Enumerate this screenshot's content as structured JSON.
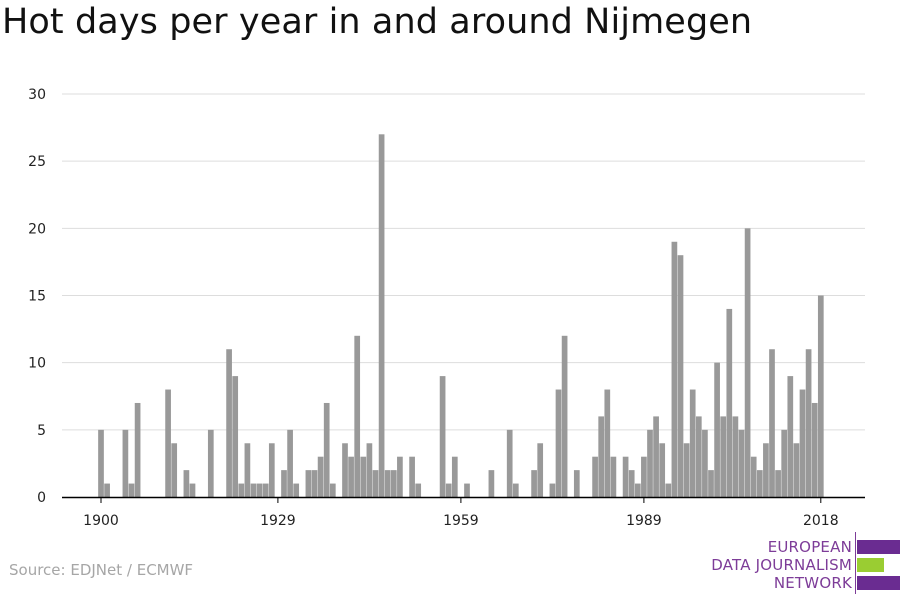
{
  "title": "Hot days per year in and around Nijmegen",
  "source": "Source: EDJNet / ECMWF",
  "logo": {
    "lines": [
      "EUROPEAN",
      "DATA JOURNALISM",
      "NETWORK"
    ],
    "colors": {
      "text": "#7d3c98",
      "bar_purple": "#6a2c91",
      "bar_green": "#9acd32"
    }
  },
  "colors": {
    "bar": "#999999",
    "grid": "#dddddd",
    "axis": "#000000"
  },
  "chart_data": {
    "type": "bar",
    "title": "Hot days per year in and around Nijmegen",
    "xlabel": "",
    "ylabel": "",
    "ylim": [
      0,
      30
    ],
    "y_ticks": [
      0,
      5,
      10,
      15,
      20,
      25,
      30
    ],
    "x_ticks": [
      1900,
      1929,
      1959,
      1989,
      2018
    ],
    "grid": true,
    "x": [
      1900,
      1901,
      1902,
      1903,
      1904,
      1905,
      1906,
      1907,
      1908,
      1909,
      1910,
      1911,
      1912,
      1913,
      1914,
      1915,
      1916,
      1917,
      1918,
      1919,
      1920,
      1921,
      1922,
      1923,
      1924,
      1925,
      1926,
      1927,
      1928,
      1929,
      1930,
      1931,
      1932,
      1933,
      1934,
      1935,
      1936,
      1937,
      1938,
      1939,
      1940,
      1941,
      1942,
      1943,
      1944,
      1945,
      1946,
      1947,
      1948,
      1949,
      1950,
      1951,
      1952,
      1953,
      1954,
      1955,
      1956,
      1957,
      1958,
      1959,
      1960,
      1961,
      1962,
      1963,
      1964,
      1965,
      1966,
      1967,
      1968,
      1969,
      1970,
      1971,
      1972,
      1973,
      1974,
      1975,
      1976,
      1977,
      1978,
      1979,
      1980,
      1981,
      1982,
      1983,
      1984,
      1985,
      1986,
      1987,
      1988,
      1989,
      1990,
      1991,
      1992,
      1993,
      1994,
      1995,
      1996,
      1997,
      1998,
      1999,
      2000,
      2001,
      2002,
      2003,
      2004,
      2005,
      2006,
      2007,
      2008,
      2009,
      2010,
      2011,
      2012,
      2013,
      2014,
      2015,
      2016,
      2017,
      2018
    ],
    "values": [
      5,
      1,
      0,
      0,
      5,
      1,
      7,
      0,
      0,
      0,
      0,
      8,
      4,
      0,
      2,
      1,
      0,
      0,
      5,
      0,
      0,
      11,
      9,
      1,
      4,
      1,
      1,
      1,
      4,
      0,
      2,
      5,
      1,
      0,
      2,
      2,
      3,
      7,
      1,
      0,
      4,
      3,
      12,
      3,
      4,
      2,
      27,
      2,
      2,
      3,
      0,
      3,
      1,
      0,
      0,
      0,
      9,
      1,
      3,
      0,
      1,
      0,
      0,
      0,
      2,
      0,
      0,
      5,
      1,
      0,
      0,
      2,
      4,
      0,
      1,
      8,
      12,
      0,
      2,
      0,
      0,
      3,
      6,
      8,
      3,
      0,
      3,
      2,
      1,
      3,
      5,
      6,
      4,
      1,
      19,
      18,
      4,
      8,
      6,
      5,
      2,
      10,
      6,
      14,
      6,
      5,
      20,
      3,
      2,
      4,
      11,
      2,
      5,
      9,
      4,
      8,
      11,
      7,
      15
    ]
  }
}
